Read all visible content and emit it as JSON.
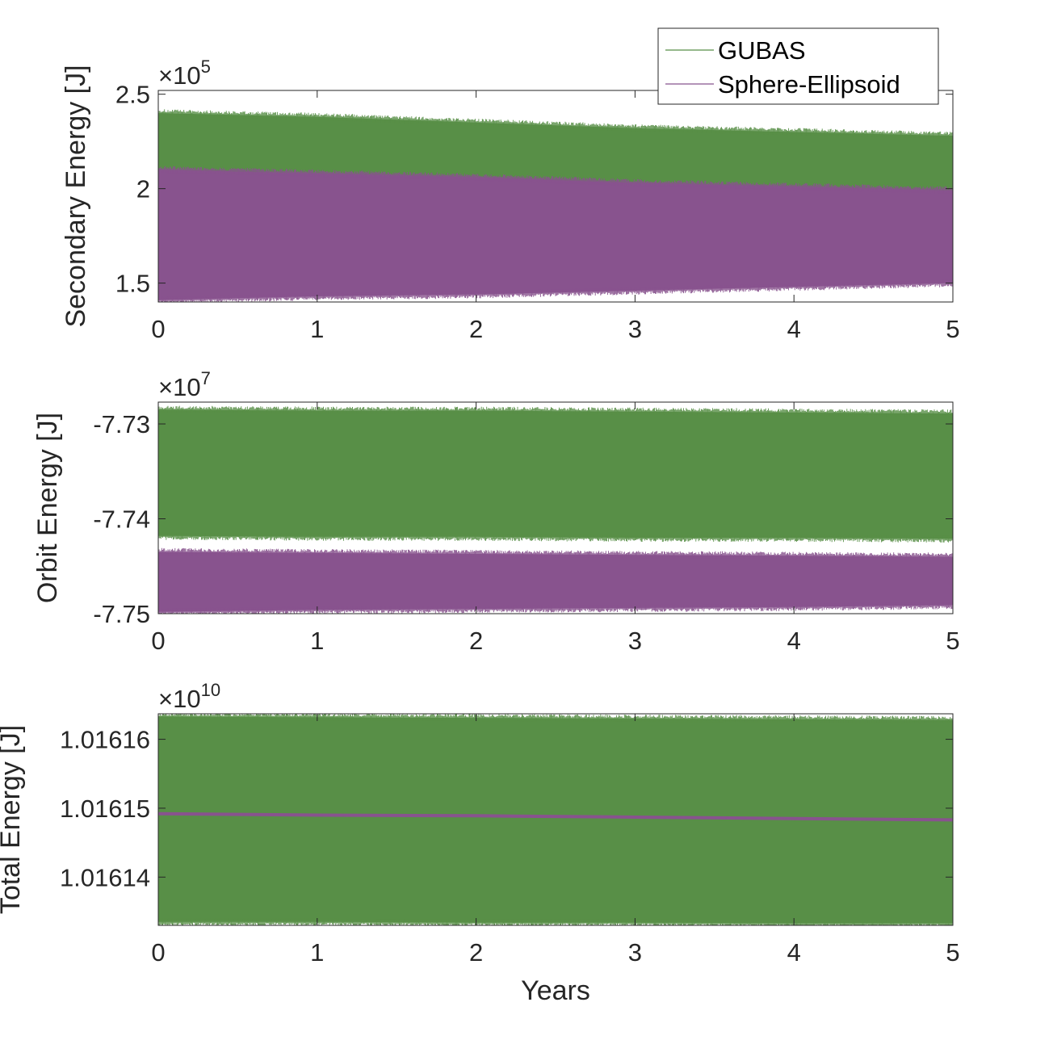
{
  "legend": {
    "entries": [
      {
        "name": "GUBAS",
        "color": "#588F47"
      },
      {
        "name": "Sphere-Ellipsoid",
        "color": "#88538E"
      }
    ]
  },
  "chart_data": [
    {
      "type": "line",
      "panel": "top",
      "ylabel": "Secondary Energy [J]",
      "xlabel": "",
      "xlim": [
        0,
        5
      ],
      "ylim": [
        1.4,
        2.52
      ],
      "multiplier": {
        "base": "×10",
        "exp": "5"
      },
      "xticks": [
        0,
        1,
        2,
        3,
        4,
        5
      ],
      "yticks": [
        1.5,
        2,
        2.5
      ],
      "ytick_labels": [
        "1.5",
        "2",
        "2.5"
      ],
      "series": [
        {
          "name": "GUBAS",
          "color": "#588F47",
          "x": [
            0,
            1,
            2,
            3,
            4,
            5
          ],
          "y_upper": [
            2.4,
            2.38,
            2.35,
            2.32,
            2.3,
            2.28
          ],
          "y_lower": [
            2.08,
            2.06,
            2.04,
            2.02,
            2.0,
            1.98
          ]
        },
        {
          "name": "Sphere-Ellipsoid",
          "color": "#88538E",
          "x": [
            0,
            1,
            2,
            3,
            4,
            5
          ],
          "y_upper": [
            2.1,
            2.08,
            2.06,
            2.03,
            2.01,
            1.99
          ],
          "y_lower": [
            1.41,
            1.43,
            1.44,
            1.46,
            1.48,
            1.5
          ]
        }
      ]
    },
    {
      "type": "line",
      "panel": "middle",
      "ylabel": "Orbit Energy [J]",
      "xlabel": "",
      "xlim": [
        0,
        5
      ],
      "ylim": [
        -7.75,
        -7.7277
      ],
      "multiplier": {
        "base": "×10",
        "exp": "7"
      },
      "xticks": [
        0,
        1,
        2,
        3,
        4,
        5
      ],
      "yticks": [
        -7.75,
        -7.74,
        -7.73
      ],
      "ytick_labels": [
        "-7.75",
        "-7.74",
        "-7.73"
      ],
      "series": [
        {
          "name": "GUBAS",
          "color": "#588F47",
          "x": [
            0,
            1,
            2,
            3,
            4,
            5
          ],
          "y_upper": [
            -7.7285,
            -7.7286,
            -7.7286,
            -7.7287,
            -7.7288,
            -7.7289
          ],
          "y_lower": [
            -7.7418,
            -7.7419,
            -7.7419,
            -7.742,
            -7.742,
            -7.7421
          ]
        },
        {
          "name": "Sphere-Ellipsoid",
          "color": "#88538E",
          "x": [
            0,
            1,
            2,
            3,
            4,
            5
          ],
          "y_upper": [
            -7.7435,
            -7.7436,
            -7.7437,
            -7.7438,
            -7.7439,
            -7.744
          ],
          "y_lower": [
            -7.7498,
            -7.7496,
            -7.7495,
            -7.7494,
            -7.7493,
            -7.7491
          ]
        }
      ]
    },
    {
      "type": "line",
      "panel": "bottom",
      "ylabel": "Total Energy [J]",
      "xlabel": "Years",
      "xlim": [
        0,
        5
      ],
      "ylim": [
        1.016133,
        1.0161637
      ],
      "multiplier": {
        "base": "×10",
        "exp": "10"
      },
      "xticks": [
        0,
        1,
        2,
        3,
        4,
        5
      ],
      "yticks": [
        1.01614,
        1.01615,
        1.01616
      ],
      "ytick_labels": [
        "1.01614",
        "1.01615",
        "1.01616"
      ],
      "series": [
        {
          "name": "GUBAS",
          "color": "#588F47",
          "x": [
            0,
            1,
            2,
            3,
            4,
            5
          ],
          "y_upper": [
            1.0161633,
            1.0161632,
            1.0161631,
            1.016163,
            1.0161629,
            1.0161628
          ],
          "y_lower": [
            1.0161335,
            1.0161335,
            1.0161334,
            1.0161334,
            1.0161333,
            1.0161333
          ]
        },
        {
          "name": "Sphere-Ellipsoid",
          "color": "#88538E",
          "x": [
            0,
            1,
            2,
            3,
            4,
            5
          ],
          "y": [
            1.0161492,
            1.016149,
            1.0161489,
            1.0161487,
            1.0161485,
            1.0161483
          ]
        }
      ]
    }
  ]
}
